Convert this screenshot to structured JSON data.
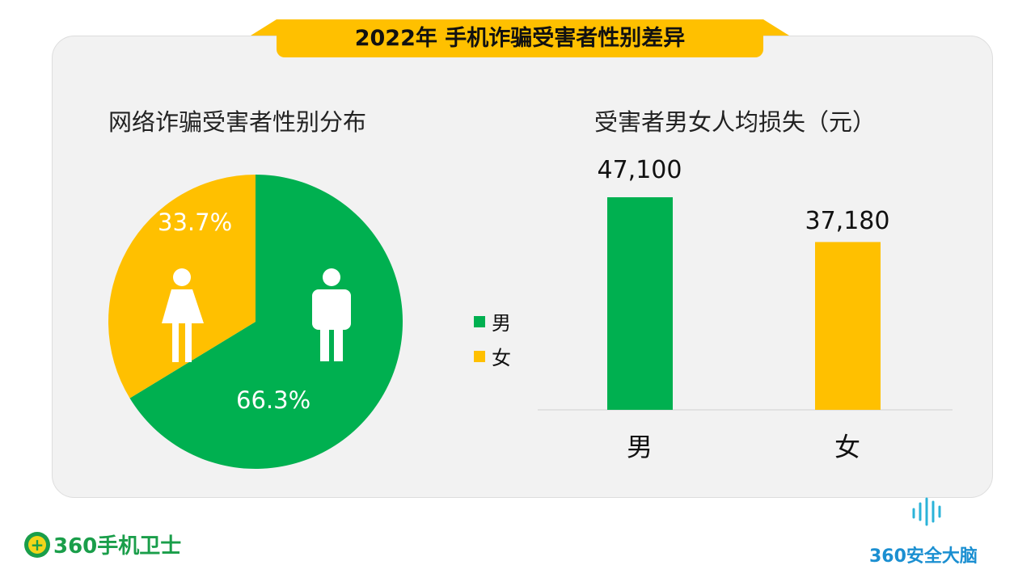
{
  "title": "2022年 手机诈骗受害者性别差异",
  "colors": {
    "male": "#00B050",
    "female": "#FFC000"
  },
  "chart_data": [
    {
      "type": "pie",
      "title": "网络诈骗受害者性别分布",
      "slices": [
        {
          "name": "男",
          "value": 66.3,
          "label": "66.3%",
          "color": "#00B050",
          "icon": "male-figure-icon"
        },
        {
          "name": "女",
          "value": 33.7,
          "label": "33.7%",
          "color": "#FFC000",
          "icon": "female-figure-icon"
        }
      ],
      "legend": {
        "placement": "right",
        "entries": [
          "男",
          "女"
        ]
      }
    },
    {
      "type": "bar",
      "title": "受害者男女人均损失（元）",
      "categories": [
        "男",
        "女"
      ],
      "values": [
        47100,
        37180
      ],
      "labels": [
        "47,100",
        "37,180"
      ],
      "colors": [
        "#00B050",
        "#FFC000"
      ],
      "ylim": [
        0,
        60000
      ],
      "grid": false
    }
  ],
  "logos": {
    "left": "360手机卫士",
    "right": "360安全大脑"
  }
}
